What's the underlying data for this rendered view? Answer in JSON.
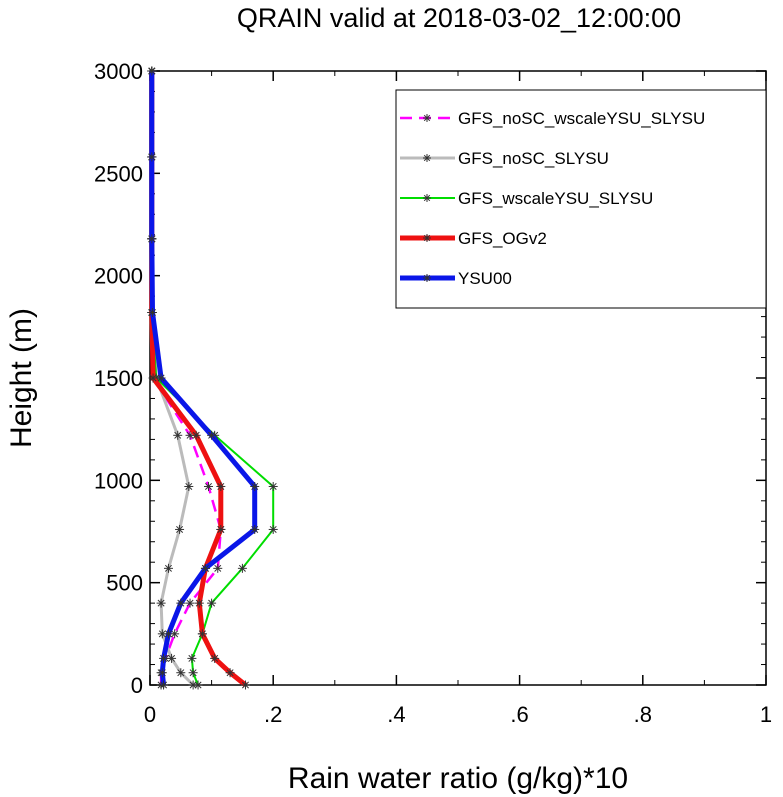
{
  "chart_data": {
    "type": "line",
    "title": "QRAIN valid at 2018-03-02_12:00:00",
    "xlabel": "Rain water ratio (g/kg)*10",
    "ylabel": "Height (m)",
    "xlim": [
      0,
      1
    ],
    "ylim": [
      0,
      3000
    ],
    "xticks": [
      0,
      0.2,
      0.4,
      0.6,
      0.8,
      1
    ],
    "xtick_labels": [
      "0",
      ".2",
      ".4",
      ".6",
      ".8",
      "1"
    ],
    "yticks": [
      0,
      500,
      1000,
      1500,
      2000,
      2500,
      3000
    ],
    "ytick_labels": [
      "0",
      "500",
      "1000",
      "1500",
      "2000",
      "2500",
      "3000"
    ],
    "grid": false,
    "legend_position": "top-right",
    "markers": "asterisk",
    "series": [
      {
        "name": "GFS_noSC_wscaleYSU_SLYSU",
        "color": "#ff00ff",
        "dash": true,
        "width": 2.5,
        "x": [
          0.018,
          0.018,
          0.025,
          0.04,
          0.065,
          0.11,
          0.115,
          0.095,
          0.065,
          0.005,
          0.003,
          0.003,
          0.003,
          0.003
        ],
        "y": [
          0,
          60,
          130,
          250,
          400,
          570,
          760,
          970,
          1220,
          1500,
          1820,
          2180,
          2580,
          3000
        ]
      },
      {
        "name": "GFS_noSC_SLYSU",
        "color": "#bbbbbb",
        "dash": false,
        "width": 3,
        "x": [
          0.07,
          0.05,
          0.035,
          0.02,
          0.018,
          0.03,
          0.048,
          0.063,
          0.045,
          0.01,
          0.003,
          0.003,
          0.003,
          0.003
        ],
        "y": [
          0,
          60,
          130,
          250,
          400,
          570,
          760,
          970,
          1220,
          1500,
          1820,
          2180,
          2580,
          3000
        ]
      },
      {
        "name": "GFS_wscaleYSU_SLYSU",
        "color": "#00dd00",
        "dash": false,
        "width": 2,
        "x": [
          0.078,
          0.07,
          0.068,
          0.085,
          0.1,
          0.15,
          0.2,
          0.2,
          0.105,
          0.01,
          0.003,
          0.003,
          0.003,
          0.003
        ],
        "y": [
          0,
          60,
          130,
          250,
          400,
          570,
          760,
          970,
          1220,
          1500,
          1820,
          2180,
          2580,
          3000
        ]
      },
      {
        "name": "GFS_OGv2",
        "color": "#ee1111",
        "dash": false,
        "width": 5,
        "x": [
          0.155,
          0.13,
          0.105,
          0.085,
          0.08,
          0.09,
          0.115,
          0.115,
          0.075,
          0.005,
          0.003,
          0.003,
          0.003,
          0.003
        ],
        "y": [
          0,
          60,
          130,
          250,
          400,
          570,
          760,
          970,
          1220,
          1500,
          1820,
          2180,
          2580,
          3000
        ]
      },
      {
        "name": "YSU00",
        "color": "#0a16e8",
        "dash": false,
        "width": 5,
        "x": [
          0.022,
          0.02,
          0.022,
          0.03,
          0.05,
          0.09,
          0.17,
          0.17,
          0.1,
          0.018,
          0.004,
          0.003,
          0.003,
          0.003
        ],
        "y": [
          0,
          60,
          130,
          250,
          400,
          570,
          760,
          970,
          1220,
          1500,
          1820,
          2180,
          2580,
          3000
        ]
      }
    ]
  }
}
